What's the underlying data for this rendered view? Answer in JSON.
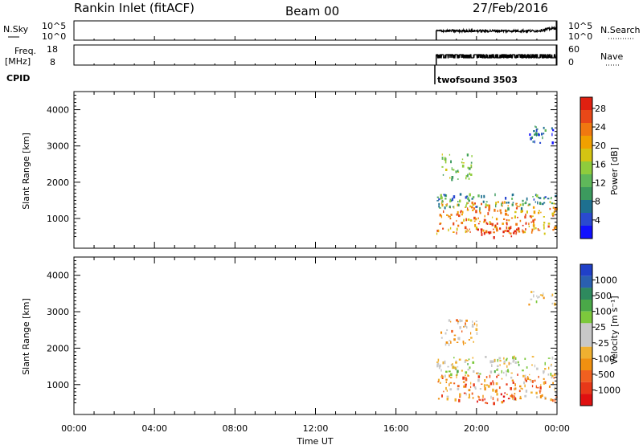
{
  "header": {
    "station": "Rankin Inlet (fitACF)",
    "beam": "Beam 00",
    "date": "27/Feb/2016"
  },
  "top_panels": {
    "nsky": {
      "left_label": "N.Sky",
      "left_ticks": [
        "10^5",
        "10^0"
      ],
      "right_ticks": [
        "10^5",
        "10^0"
      ],
      "right_label": "N.Search"
    },
    "freq": {
      "left_label_1": "Freq.",
      "left_label_2": "[MHz]",
      "left_ticks": [
        "18",
        "8"
      ],
      "right_ticks": [
        "60",
        "0"
      ],
      "right_label": "Nave"
    },
    "cpid": {
      "label": "CPID",
      "program": "twofsound 3503"
    }
  },
  "axis": {
    "xlabel": "Time UT",
    "xticks": [
      "00:00",
      "04:00",
      "08:00",
      "12:00",
      "16:00",
      "20:00",
      "00:00"
    ],
    "ylabel": "Slant Range [km]",
    "yticks": [
      "1000",
      "2000",
      "3000",
      "4000"
    ]
  },
  "colorbars": {
    "power": {
      "label": "Power [dB]",
      "ticks": [
        "4",
        "8",
        "12",
        "16",
        "20",
        "24",
        "28"
      ],
      "colors": [
        "#1010ff",
        "#2a4ad0",
        "#1e7090",
        "#3c9a5e",
        "#5fb85a",
        "#8fcc3c",
        "#d4c412",
        "#f0a000",
        "#f07810",
        "#e84818",
        "#e02010"
      ]
    },
    "velocity": {
      "label": "Velocity [m s⁻¹]",
      "ticks": [
        "1000",
        "500",
        "100",
        "25",
        "-25",
        "-100",
        "-500",
        "-1000"
      ],
      "colors": [
        "#2040c8",
        "#2a60b0",
        "#2e8a5e",
        "#4aa848",
        "#7cc83c",
        "#c8c8c8",
        "#c8c8c8",
        "#f0b030",
        "#f09010",
        "#f06020",
        "#e83818",
        "#e01010"
      ]
    }
  },
  "chart_data": [
    {
      "type": "heatmap",
      "title": "Power",
      "xlabel": "Time UT",
      "ylabel": "Slant Range [km]",
      "xlim": [
        0,
        24
      ],
      "ylim": [
        180,
        4500
      ],
      "colorbar_label": "Power [dB]",
      "colorbar_range": [
        0,
        30
      ],
      "blobs": [
        {
          "t0": 18.0,
          "t1": 24.0,
          "r0": 600,
          "r1": 1500,
          "value": 22
        },
        {
          "t0": 20.0,
          "t1": 22.5,
          "r0": 500,
          "r1": 900,
          "value": 28
        },
        {
          "t0": 18.0,
          "t1": 24.0,
          "r0": 1300,
          "r1": 1700,
          "value": 10
        },
        {
          "t0": 18.2,
          "t1": 19.8,
          "r0": 2100,
          "r1": 2800,
          "value": 14
        },
        {
          "t0": 22.5,
          "t1": 24.0,
          "r0": 3100,
          "r1": 3600,
          "value": 6
        }
      ]
    },
    {
      "type": "heatmap",
      "title": "Velocity",
      "xlabel": "Time UT",
      "ylabel": "Slant Range [km]",
      "xlim": [
        0,
        24
      ],
      "ylim": [
        180,
        4500
      ],
      "colorbar_label": "Velocity [m s⁻¹]",
      "colorbar_range": [
        -1000,
        1000
      ],
      "blobs": [
        {
          "t0": 18.0,
          "t1": 24.0,
          "r0": 600,
          "r1": 1300,
          "value": -400
        },
        {
          "t0": 18.0,
          "t1": 24.0,
          "r0": 1300,
          "r1": 1800,
          "value": 0
        },
        {
          "t0": 20.0,
          "t1": 22.0,
          "r0": 500,
          "r1": 800,
          "value": -800
        },
        {
          "t0": 18.2,
          "t1": 20.0,
          "r0": 2100,
          "r1": 2800,
          "value": -200
        },
        {
          "t0": 22.5,
          "t1": 24.0,
          "r0": 3200,
          "r1": 3600,
          "value": -150
        }
      ]
    },
    {
      "type": "line",
      "title": "N.Sky / N.Search",
      "x_range": [
        18.0,
        24.0
      ],
      "trace": "noise level"
    },
    {
      "type": "line",
      "title": "Freq. / Nave",
      "x_range": [
        18.0,
        24.0
      ],
      "trace": "frequency"
    }
  ]
}
